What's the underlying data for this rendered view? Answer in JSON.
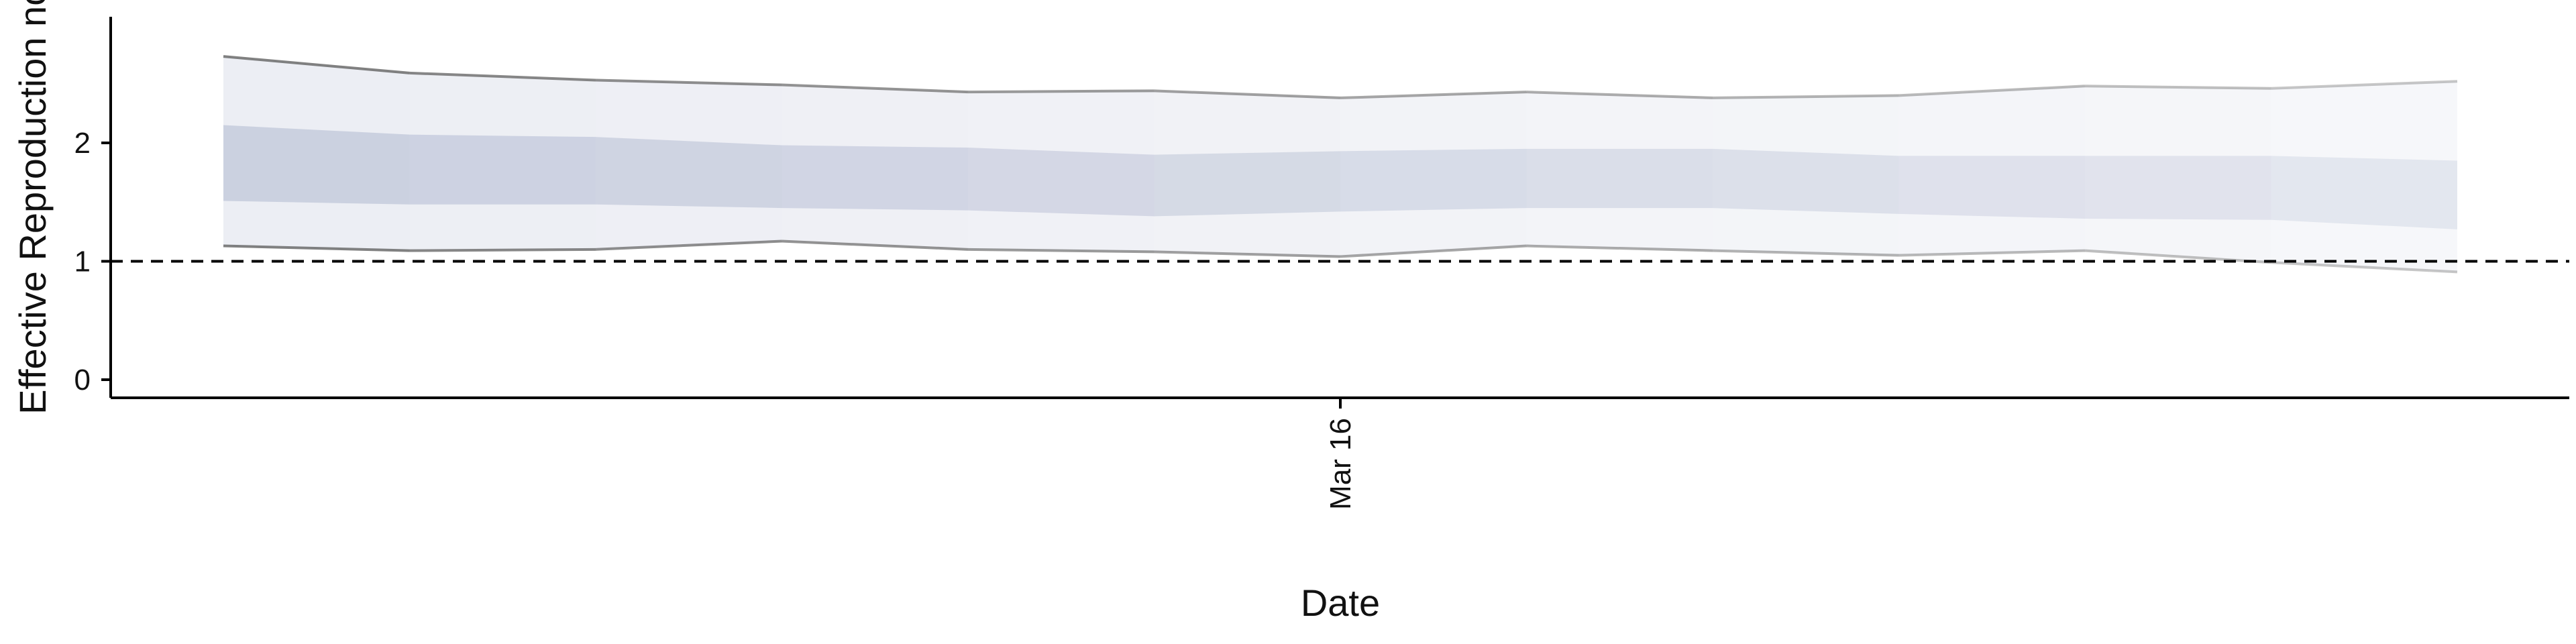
{
  "chart_data": {
    "type": "area",
    "title": "",
    "xlabel": "Date",
    "ylabel": "Effective Reproduction no.",
    "x": [
      1,
      2,
      3,
      4,
      5,
      6,
      7,
      8,
      9,
      10,
      11,
      12,
      13
    ],
    "x_tick_values": [
      7
    ],
    "x_tick_labels": [
      "Mar 16"
    ],
    "y_ticks": [
      0,
      1,
      2
    ],
    "ylim": [
      -0.1,
      3.1
    ],
    "threshold": 1,
    "series": [
      {
        "lower_90": [
          1.13,
          1.09,
          1.1,
          1.17,
          1.1,
          1.08,
          1.04,
          1.13,
          1.09,
          1.05,
          1.09,
          0.99,
          0.91
        ],
        "upper_90": [
          2.73,
          2.59,
          2.53,
          2.49,
          2.43,
          2.44,
          2.38,
          2.43,
          2.38,
          2.4,
          2.48,
          2.46,
          2.52
        ]
      },
      {
        "lower_50": [
          1.51,
          1.48,
          1.48,
          1.45,
          1.43,
          1.38,
          1.42,
          1.45,
          1.45,
          1.4,
          1.36,
          1.35,
          1.27
        ],
        "upper_50": [
          2.15,
          2.07,
          2.05,
          1.98,
          1.96,
          1.9,
          1.93,
          1.95,
          1.95,
          1.89,
          1.89,
          1.89,
          1.85
        ]
      }
    ],
    "colors": {
      "band_outer": "#dfe2ec",
      "band_inner": "#c3c9db",
      "edge": "#6b6b6b",
      "axis": "#000000"
    },
    "grid": false,
    "legend": "none"
  }
}
